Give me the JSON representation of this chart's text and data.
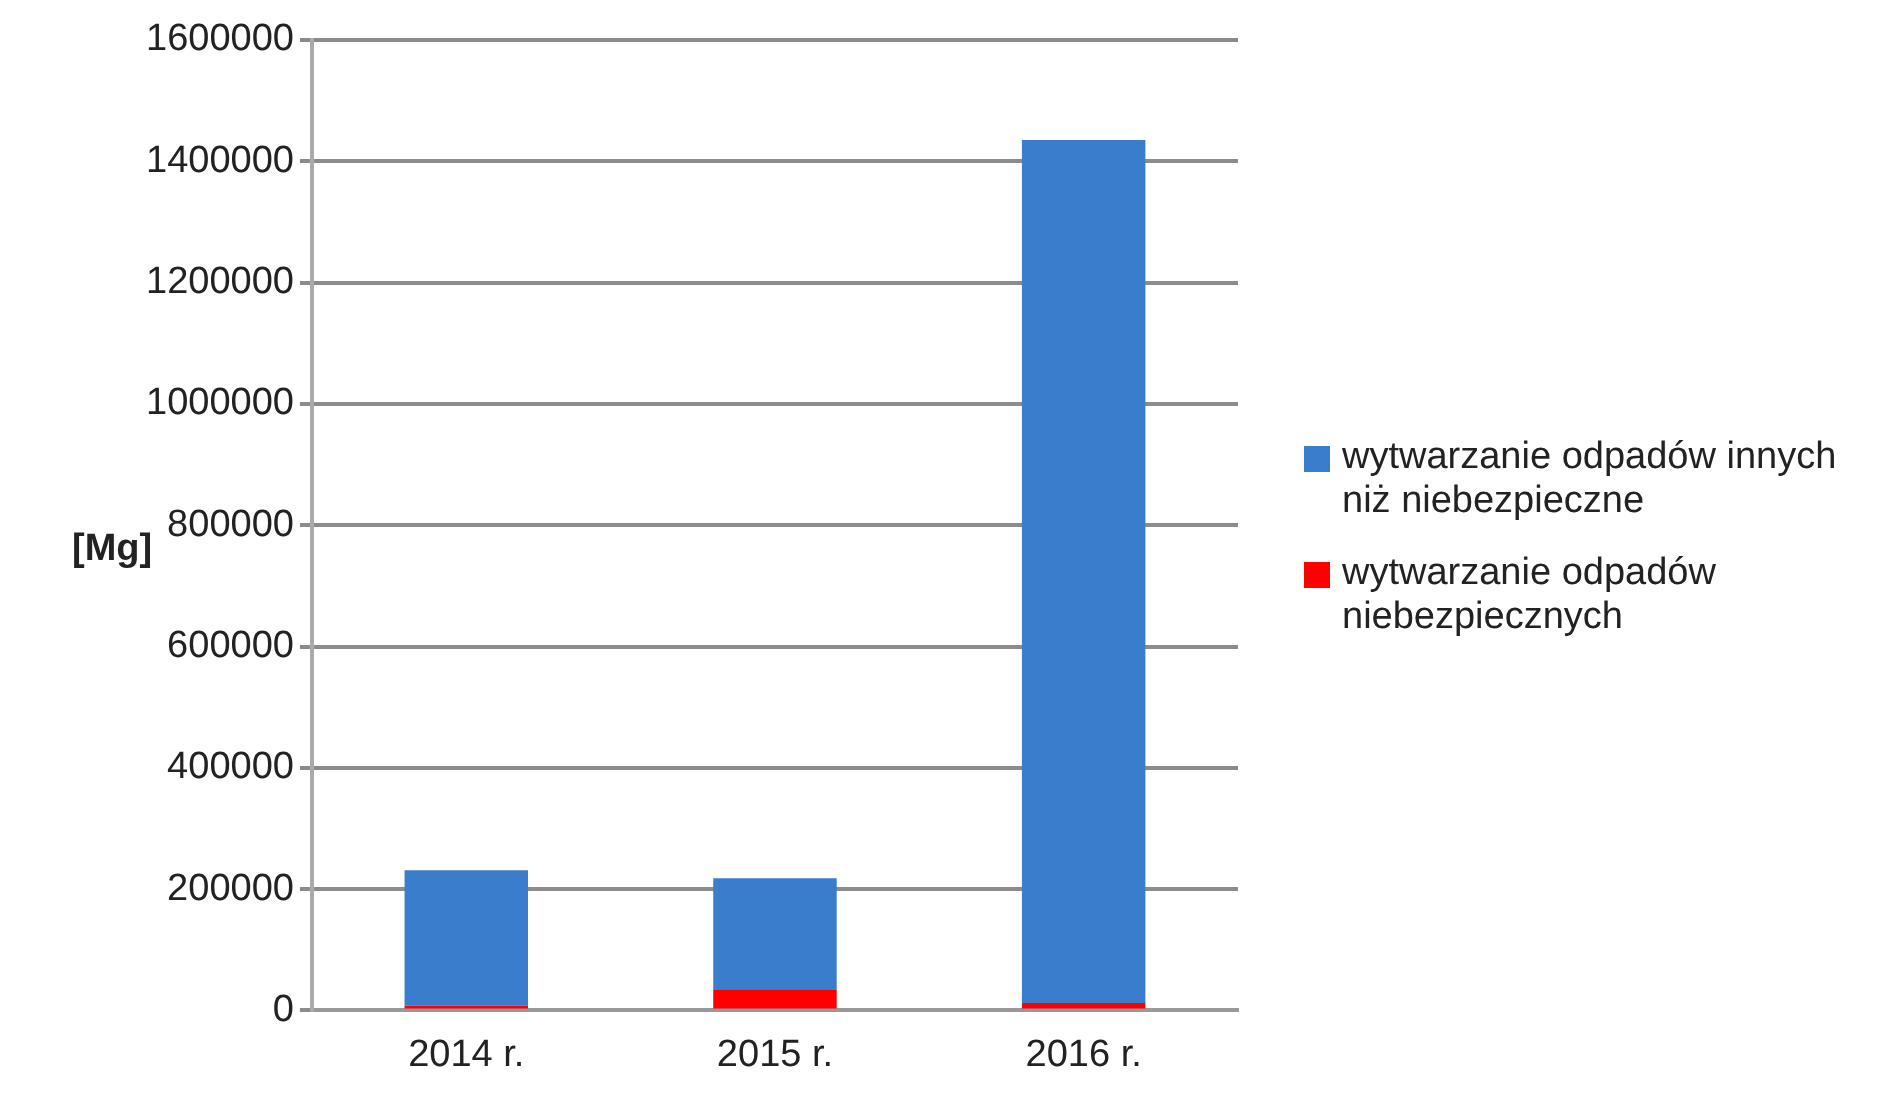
{
  "chart_data": {
    "type": "bar",
    "stacked": true,
    "ylabel": "[Mg]",
    "categories": [
      "2014 r.",
      "2015 r.",
      "2016 r."
    ],
    "series": [
      {
        "name": "wytwarzanie odpadów niebezpiecznych",
        "color": "#ff0000",
        "values": [
          8000,
          35000,
          12000
        ]
      },
      {
        "name": "wytwarzanie odpadów innych niż niebezpieczne",
        "color": "#3a7dcc",
        "values": [
          223000,
          183000,
          1423000
        ]
      }
    ],
    "ylim": [
      0,
      1600000
    ],
    "yticks": [
      0,
      200000,
      400000,
      600000,
      800000,
      1000000,
      1200000,
      1400000,
      1600000
    ],
    "grid": "y",
    "legend": "right"
  }
}
